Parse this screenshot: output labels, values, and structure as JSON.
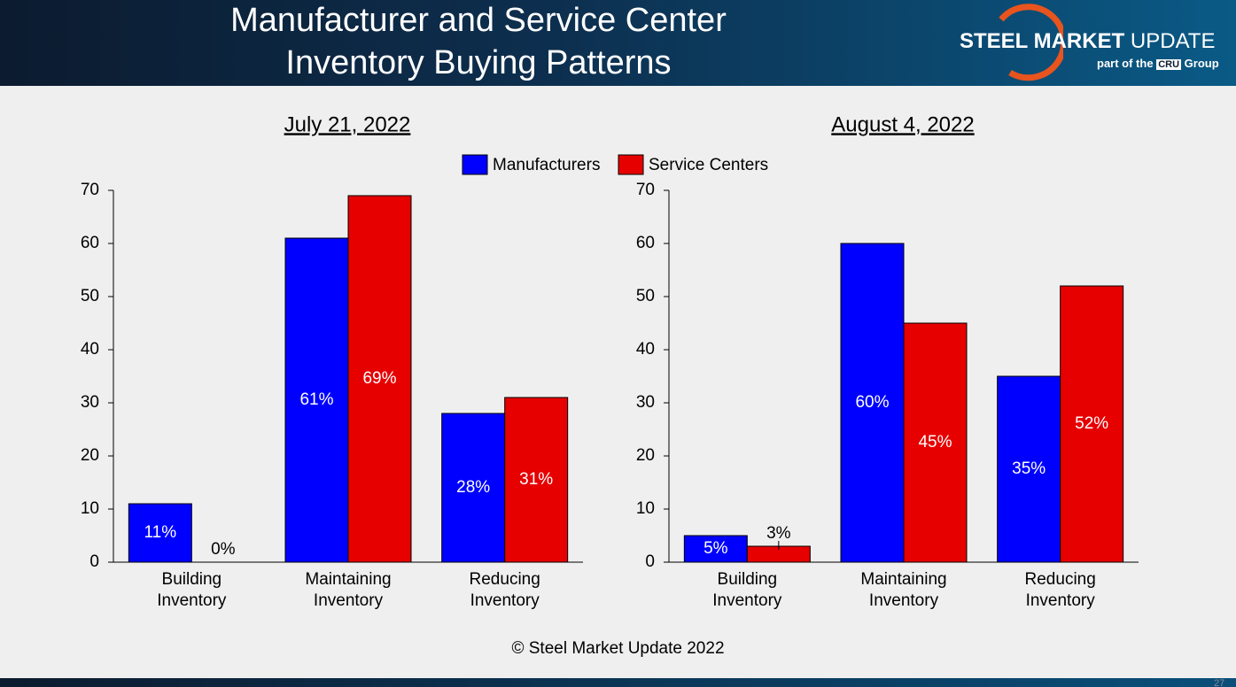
{
  "header": {
    "title_lines": [
      "Manufacturer and Service Center",
      "Inventory Buying Patterns"
    ],
    "logo": {
      "name_bold": "STEEL MARKET",
      "name": "UPDATE",
      "tagline": "part of the",
      "badge": "CRU",
      "group": "Group"
    }
  },
  "chart_data": [
    {
      "type": "bar",
      "title": "July 21, 2022",
      "categories": [
        "Building Inventory",
        "Maintaining Inventory",
        "Reducing Inventory"
      ],
      "series": [
        {
          "name": "Manufacturers",
          "color": "#0000ff",
          "values": [
            11,
            61,
            28
          ],
          "value_labels": [
            "11%",
            "61%",
            "28%"
          ]
        },
        {
          "name": "Service Centers",
          "color": "#e60000",
          "values": [
            0,
            69,
            31
          ],
          "value_labels": [
            "0%",
            "69%",
            "31%"
          ]
        }
      ],
      "ylim": [
        0,
        70
      ],
      "yticks": [
        0,
        10,
        20,
        30,
        40,
        50,
        60,
        70
      ]
    },
    {
      "type": "bar",
      "title": "August 4, 2022",
      "categories": [
        "Building Inventory",
        "Maintaining Inventory",
        "Reducing Inventory"
      ],
      "series": [
        {
          "color": "#0000ff",
          "values": [
            5,
            60,
            35
          ],
          "value_labels": [
            "5%",
            "60%",
            "35%"
          ]
        },
        {
          "color": "#e60000",
          "values": [
            3,
            45,
            52
          ],
          "value_labels": [
            "3%",
            "45%",
            "52%"
          ]
        }
      ],
      "ylim": [
        0,
        70
      ],
      "yticks": [
        0,
        10,
        20,
        30,
        40,
        50,
        60,
        70
      ]
    }
  ],
  "footer": {
    "copyright": "© Steel Market Update 2022",
    "page": "27"
  }
}
